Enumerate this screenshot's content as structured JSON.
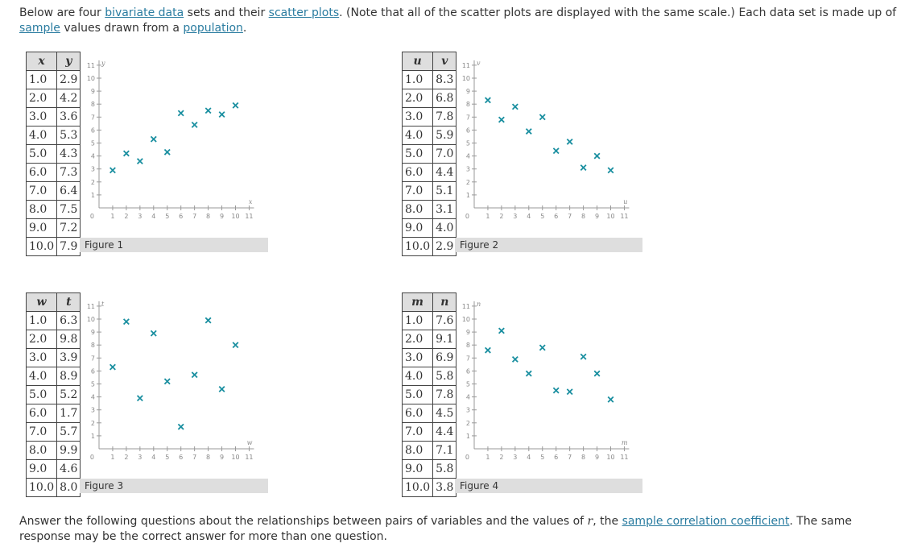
{
  "intro": {
    "t1": "Below are four ",
    "link1": "bivariate data",
    "t2": " sets and their ",
    "link2": "scatter plots",
    "t3": ". (Note that all of the scatter plots are displayed with the same scale.) Each data set is made up of ",
    "link3": "sample",
    "t4": " values drawn from a ",
    "link4": "population",
    "t5": "."
  },
  "datasets": [
    {
      "xname": "x",
      "yname": "y",
      "figure": "Figure 1",
      "rows": [
        [
          "1.0",
          "2.9"
        ],
        [
          "2.0",
          "4.2"
        ],
        [
          "3.0",
          "3.6"
        ],
        [
          "4.0",
          "5.3"
        ],
        [
          "5.0",
          "4.3"
        ],
        [
          "6.0",
          "7.3"
        ],
        [
          "7.0",
          "6.4"
        ],
        [
          "8.0",
          "7.5"
        ],
        [
          "9.0",
          "7.2"
        ],
        [
          "10.0",
          "7.9"
        ]
      ]
    },
    {
      "xname": "u",
      "yname": "v",
      "figure": "Figure 2",
      "rows": [
        [
          "1.0",
          "8.3"
        ],
        [
          "2.0",
          "6.8"
        ],
        [
          "3.0",
          "7.8"
        ],
        [
          "4.0",
          "5.9"
        ],
        [
          "5.0",
          "7.0"
        ],
        [
          "6.0",
          "4.4"
        ],
        [
          "7.0",
          "5.1"
        ],
        [
          "8.0",
          "3.1"
        ],
        [
          "9.0",
          "4.0"
        ],
        [
          "10.0",
          "2.9"
        ]
      ]
    },
    {
      "xname": "w",
      "yname": "t",
      "figure": "Figure 3",
      "rows": [
        [
          "1.0",
          "6.3"
        ],
        [
          "2.0",
          "9.8"
        ],
        [
          "3.0",
          "3.9"
        ],
        [
          "4.0",
          "8.9"
        ],
        [
          "5.0",
          "5.2"
        ],
        [
          "6.0",
          "1.7"
        ],
        [
          "7.0",
          "5.7"
        ],
        [
          "8.0",
          "9.9"
        ],
        [
          "9.0",
          "4.6"
        ],
        [
          "10.0",
          "8.0"
        ]
      ]
    },
    {
      "xname": "m",
      "yname": "n",
      "figure": "Figure 4",
      "rows": [
        [
          "1.0",
          "7.6"
        ],
        [
          "2.0",
          "9.1"
        ],
        [
          "3.0",
          "6.9"
        ],
        [
          "4.0",
          "5.8"
        ],
        [
          "5.0",
          "7.8"
        ],
        [
          "6.0",
          "4.5"
        ],
        [
          "7.0",
          "4.4"
        ],
        [
          "8.0",
          "7.1"
        ],
        [
          "9.0",
          "5.8"
        ],
        [
          "10.0",
          "3.8"
        ]
      ]
    }
  ],
  "chart_data": [
    {
      "type": "scatter",
      "xlabel": "x",
      "ylabel": "y",
      "xlim": [
        0,
        11
      ],
      "ylim": [
        0,
        11
      ],
      "x": [
        1,
        2,
        3,
        4,
        5,
        6,
        7,
        8,
        9,
        10
      ],
      "y": [
        2.9,
        4.2,
        3.6,
        5.3,
        4.3,
        7.3,
        6.4,
        7.5,
        7.2,
        7.9
      ],
      "xticks": [
        "1",
        "2",
        "3",
        "4",
        "5",
        "6",
        "7",
        "8",
        "9",
        "10",
        "11"
      ],
      "yticks": [
        "1",
        "2",
        "3",
        "4",
        "5",
        "6",
        "7",
        "8",
        "9",
        "10",
        "11"
      ],
      "origin": "0",
      "marker_color": "#1a8fa0"
    },
    {
      "type": "scatter",
      "xlabel": "u",
      "ylabel": "v",
      "xlim": [
        0,
        11
      ],
      "ylim": [
        0,
        11
      ],
      "x": [
        1,
        2,
        3,
        4,
        5,
        6,
        7,
        8,
        9,
        10
      ],
      "y": [
        8.3,
        6.8,
        7.8,
        5.9,
        7.0,
        4.4,
        5.1,
        3.1,
        4.0,
        2.9
      ],
      "xticks": [
        "1",
        "2",
        "3",
        "4",
        "5",
        "6",
        "7",
        "8",
        "9",
        "10",
        "11"
      ],
      "yticks": [
        "1",
        "2",
        "3",
        "4",
        "5",
        "6",
        "7",
        "8",
        "9",
        "10",
        "11"
      ],
      "origin": "0",
      "marker_color": "#1a8fa0"
    },
    {
      "type": "scatter",
      "xlabel": "w",
      "ylabel": "t",
      "xlim": [
        0,
        11
      ],
      "ylim": [
        0,
        11
      ],
      "x": [
        1,
        2,
        3,
        4,
        5,
        6,
        7,
        8,
        9,
        10
      ],
      "y": [
        6.3,
        9.8,
        3.9,
        8.9,
        5.2,
        1.7,
        5.7,
        9.9,
        4.6,
        8.0
      ],
      "xticks": [
        "1",
        "2",
        "3",
        "4",
        "5",
        "6",
        "7",
        "8",
        "9",
        "10",
        "11"
      ],
      "yticks": [
        "1",
        "2",
        "3",
        "4",
        "5",
        "6",
        "7",
        "8",
        "9",
        "10",
        "11"
      ],
      "origin": "0",
      "marker_color": "#1a8fa0"
    },
    {
      "type": "scatter",
      "xlabel": "m",
      "ylabel": "n",
      "xlim": [
        0,
        11
      ],
      "ylim": [
        0,
        11
      ],
      "x": [
        1,
        2,
        3,
        4,
        5,
        6,
        7,
        8,
        9,
        10
      ],
      "y": [
        7.6,
        9.1,
        6.9,
        5.8,
        7.8,
        4.5,
        4.4,
        7.1,
        5.8,
        3.8
      ],
      "xticks": [
        "1",
        "2",
        "3",
        "4",
        "5",
        "6",
        "7",
        "8",
        "9",
        "10",
        "11"
      ],
      "yticks": [
        "1",
        "2",
        "3",
        "4",
        "5",
        "6",
        "7",
        "8",
        "9",
        "10",
        "11"
      ],
      "origin": "0",
      "marker_color": "#1a8fa0"
    }
  ],
  "outro": {
    "t1": "Answer the following questions about the relationships between pairs of variables and the values of ",
    "r": "r",
    "t2": ", the ",
    "link1": "sample correlation coefficient",
    "t3": ". The same response may be the correct answer for more than one question."
  }
}
